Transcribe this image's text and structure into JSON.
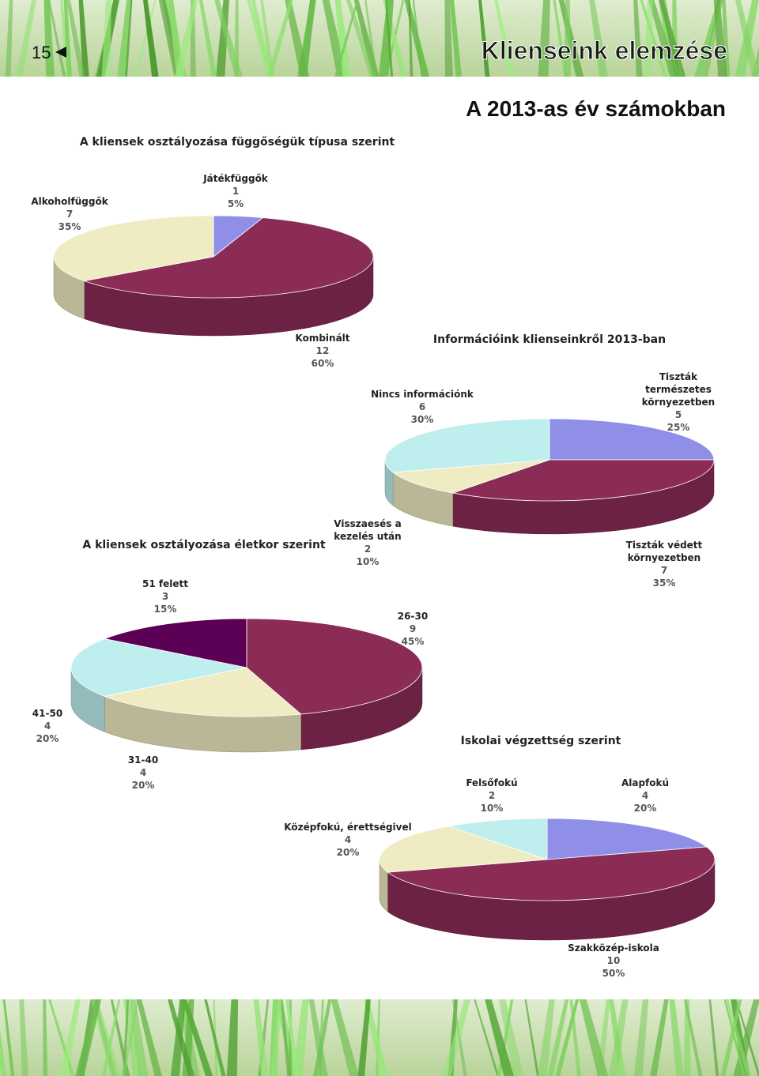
{
  "header": {
    "page_number": "15",
    "title": "Klienseink elemzése",
    "subtitle": "A 2013-as év számokban"
  },
  "chart_data": [
    {
      "type": "pie",
      "title": "A kliensek osztályozása függőségük típusa szerint",
      "categories": [
        "Játékfüggők",
        "Kombinált",
        "Alkoholfüggők"
      ],
      "values": [
        5,
        60,
        35
      ],
      "value_labels": [
        "5%",
        "60%",
        "35%"
      ],
      "counts": [
        1,
        12,
        7
      ],
      "colors": [
        "#8f8fe8",
        "#8b2c57",
        "#efebc2"
      ]
    },
    {
      "type": "pie",
      "title": "Információink klienseinkről 2013-ban",
      "categories": [
        "Tiszták természetes környezetben",
        "Tiszták védett környezetben",
        "Visszaesés a kezelés után",
        "Nincs információnk"
      ],
      "values": [
        25,
        35,
        10,
        30
      ],
      "value_labels": [
        "25%",
        "35%",
        "10%",
        "30%"
      ],
      "counts": [
        5,
        7,
        2,
        6
      ],
      "colors": [
        "#8f8fe8",
        "#8b2c57",
        "#efebc2",
        "#bfeeee"
      ]
    },
    {
      "type": "pie",
      "title": "A kliensek osztályozása életkor szerint",
      "categories": [
        "26-30",
        "31-40",
        "41-50",
        "51 felett"
      ],
      "values": [
        45,
        20,
        20,
        15
      ],
      "value_labels": [
        "45%",
        "20%",
        "20%",
        "15%"
      ],
      "counts": [
        9,
        4,
        4,
        3
      ],
      "colors": [
        "#8b2c57",
        "#efebc2",
        "#bfeeee",
        "#5c0055"
      ]
    },
    {
      "type": "pie",
      "title": "Iskolai végzettség szerint",
      "categories": [
        "Alapfokú",
        "Szakközép-iskola",
        "Középfokú, érettségivel",
        "Felsőfokú"
      ],
      "values": [
        20,
        50,
        20,
        10
      ],
      "value_labels": [
        "20%",
        "50%",
        "20%",
        "10%"
      ],
      "counts": [
        4,
        10,
        4,
        2
      ],
      "colors": [
        "#8f8fe8",
        "#8b2c57",
        "#efebc2",
        "#bfeeee"
      ]
    }
  ]
}
